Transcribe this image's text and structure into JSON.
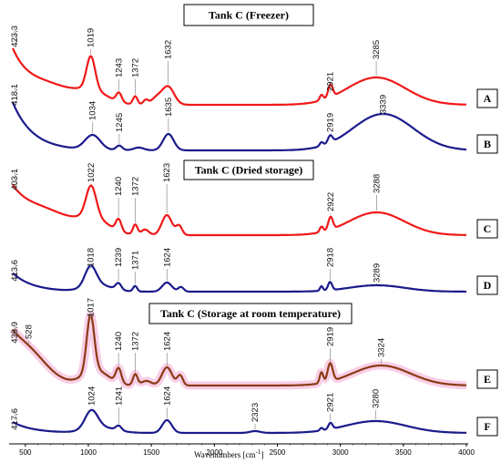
{
  "chart_data": {
    "type": "line",
    "x_unit_range": [
      400,
      4000
    ],
    "xlabel": "Wavenumbers [cm",
    "xlabel_sup": "-1",
    "xlabel_close": "]",
    "xticks": [
      500,
      1000,
      1500,
      2000,
      2500,
      3000,
      3500,
      4000
    ],
    "xtick_labels": [
      "500",
      "1000",
      "1500",
      "2000",
      "2500",
      "3000",
      "3500",
      "4000"
    ],
    "colors": {
      "red": "#f01818",
      "blue": "#1a1a8c",
      "brown": "#8b3a14",
      "pink": "#f4a7d3"
    },
    "groups": [
      {
        "title": "Tank C (Freezer)",
        "series": [
          "A",
          "B"
        ]
      },
      {
        "title": "Tank C (Dried storage)",
        "series": [
          "C",
          "D"
        ]
      },
      {
        "title": "Tank C (Storage at room temperature)",
        "series": [
          "E",
          "F"
        ]
      }
    ],
    "series": [
      {
        "name": "A",
        "color": "red",
        "start_label": "423.3",
        "peaks": [
          {
            "x": 1019,
            "label": "1019"
          },
          {
            "x": 1243,
            "label": "1243"
          },
          {
            "x": 1372,
            "label": "1372"
          },
          {
            "x": 1632,
            "label": "1632"
          },
          {
            "x": 2921,
            "label": "2921"
          },
          {
            "x": 3285,
            "label": "3285"
          }
        ]
      },
      {
        "name": "B",
        "color": "blue",
        "start_label": "418.1",
        "peaks": [
          {
            "x": 1034,
            "label": "1034"
          },
          {
            "x": 1245,
            "label": "1245"
          },
          {
            "x": 1635,
            "label": "1635"
          },
          {
            "x": 2919,
            "label": "2919"
          },
          {
            "x": 3339,
            "label": "3339"
          }
        ]
      },
      {
        "name": "C",
        "color": "red",
        "start_label": "403.1",
        "peaks": [
          {
            "x": 1022,
            "label": "1022"
          },
          {
            "x": 1240,
            "label": "1240"
          },
          {
            "x": 1372,
            "label": "1372"
          },
          {
            "x": 1623,
            "label": "1623"
          },
          {
            "x": 2922,
            "label": "2922"
          },
          {
            "x": 3288,
            "label": "3288"
          }
        ]
      },
      {
        "name": "D",
        "color": "blue",
        "start_label": "413.6",
        "peaks": [
          {
            "x": 1018,
            "label": "1018"
          },
          {
            "x": 1239,
            "label": "1239"
          },
          {
            "x": 1371,
            "label": "1371"
          },
          {
            "x": 1624,
            "label": "1624"
          },
          {
            "x": 2918,
            "label": "2918"
          },
          {
            "x": 3289,
            "label": "3289"
          }
        ]
      },
      {
        "name": "E",
        "color": "brown",
        "start_label": "436.9",
        "peaks": [
          {
            "x": 528,
            "label": "528"
          },
          {
            "x": 1017,
            "label": "1017"
          },
          {
            "x": 1240,
            "label": "1240"
          },
          {
            "x": 1372,
            "label": "1372"
          },
          {
            "x": 1624,
            "label": "1624"
          },
          {
            "x": 2919,
            "label": "2919"
          },
          {
            "x": 3324,
            "label": "3324"
          }
        ]
      },
      {
        "name": "F",
        "color": "blue",
        "start_label": "417.6",
        "peaks": [
          {
            "x": 1024,
            "label": "1024"
          },
          {
            "x": 1241,
            "label": "1241"
          },
          {
            "x": 1624,
            "label": "1624"
          },
          {
            "x": 2323,
            "label": "2323"
          },
          {
            "x": 2921,
            "label": "2921"
          },
          {
            "x": 3280,
            "label": "3280"
          }
        ]
      }
    ]
  }
}
